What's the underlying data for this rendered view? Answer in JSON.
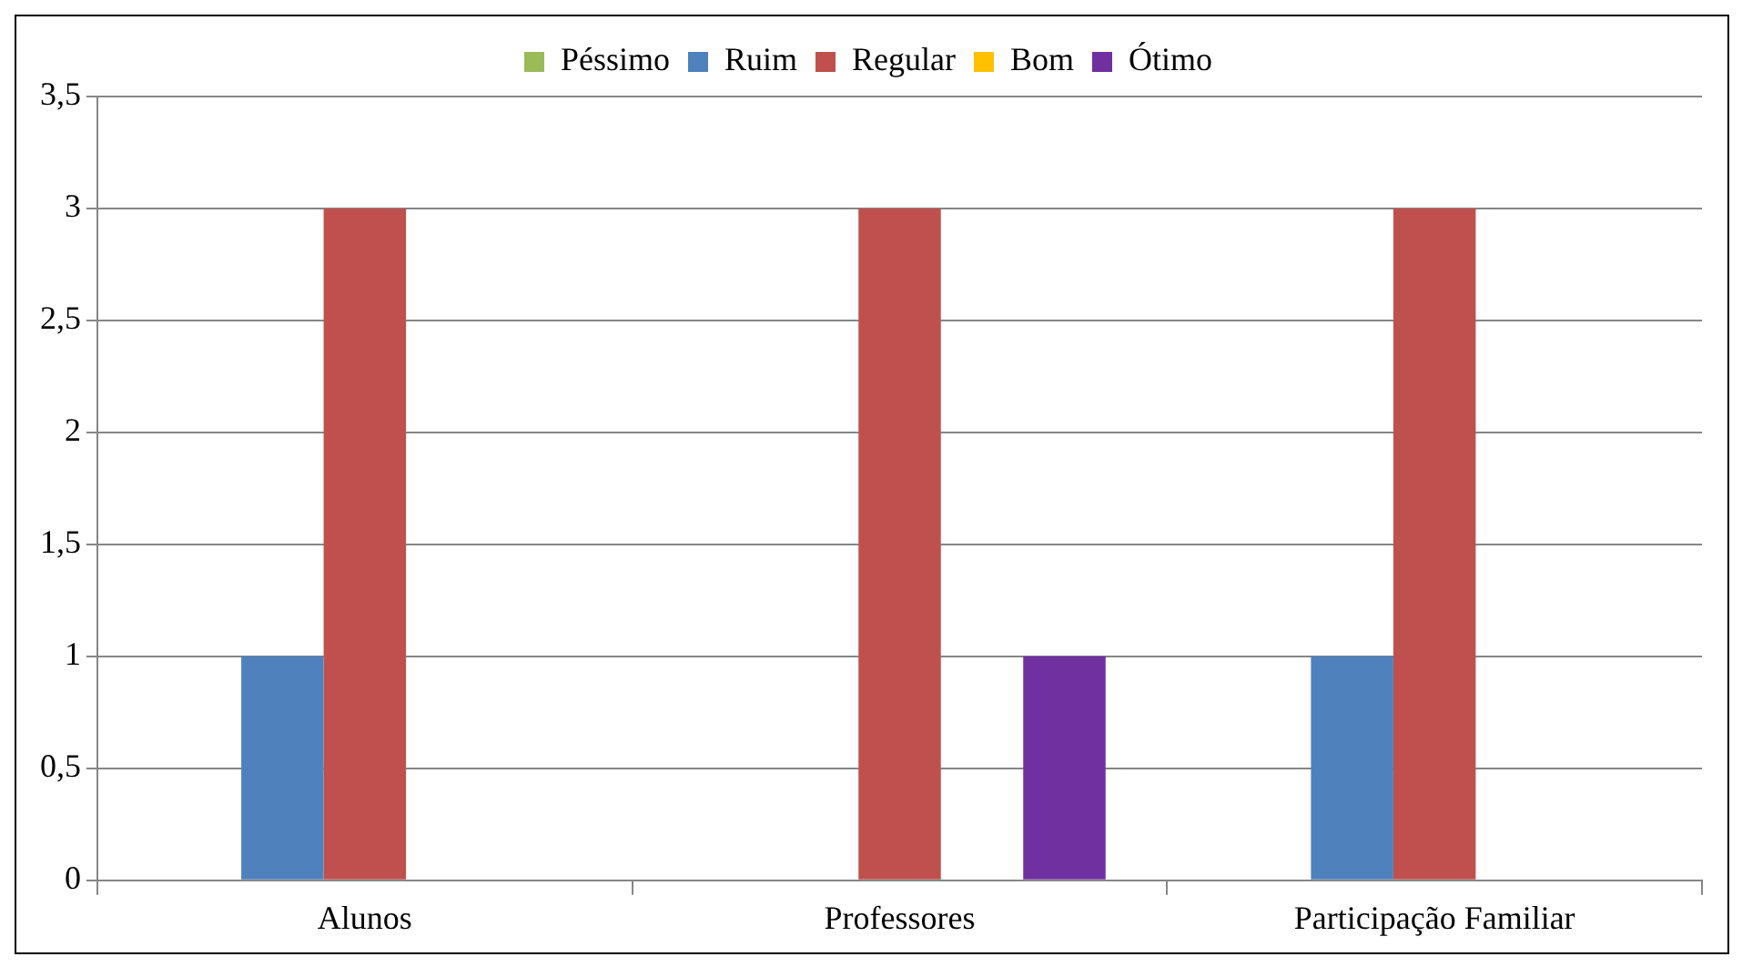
{
  "chart_data": {
    "type": "bar",
    "categories": [
      "Alunos",
      "Professores",
      "Participação Familiar"
    ],
    "series": [
      {
        "name": "Péssimo",
        "color": "#9bbb59",
        "values": [
          0,
          0,
          0
        ]
      },
      {
        "name": "Ruim",
        "color": "#4f81bd",
        "values": [
          1,
          0,
          1
        ]
      },
      {
        "name": "Regular",
        "color": "#c0504d",
        "values": [
          3,
          3,
          3
        ]
      },
      {
        "name": "Bom",
        "color": "#ffc000",
        "values": [
          0,
          0,
          0
        ]
      },
      {
        "name": "Ótimo",
        "color": "#7030a0",
        "values": [
          0,
          1,
          0
        ]
      }
    ],
    "ylim": [
      0,
      3.5
    ],
    "yticks": [
      0,
      {
        "value": 0.5,
        "label": "0,5"
      },
      1,
      {
        "value": 1.5,
        "label": "1,5"
      },
      2,
      {
        "value": 2.5,
        "label": "2,5"
      },
      3,
      {
        "value": 3.5,
        "label": "3,5"
      }
    ],
    "grid": "y",
    "legend": "top"
  }
}
